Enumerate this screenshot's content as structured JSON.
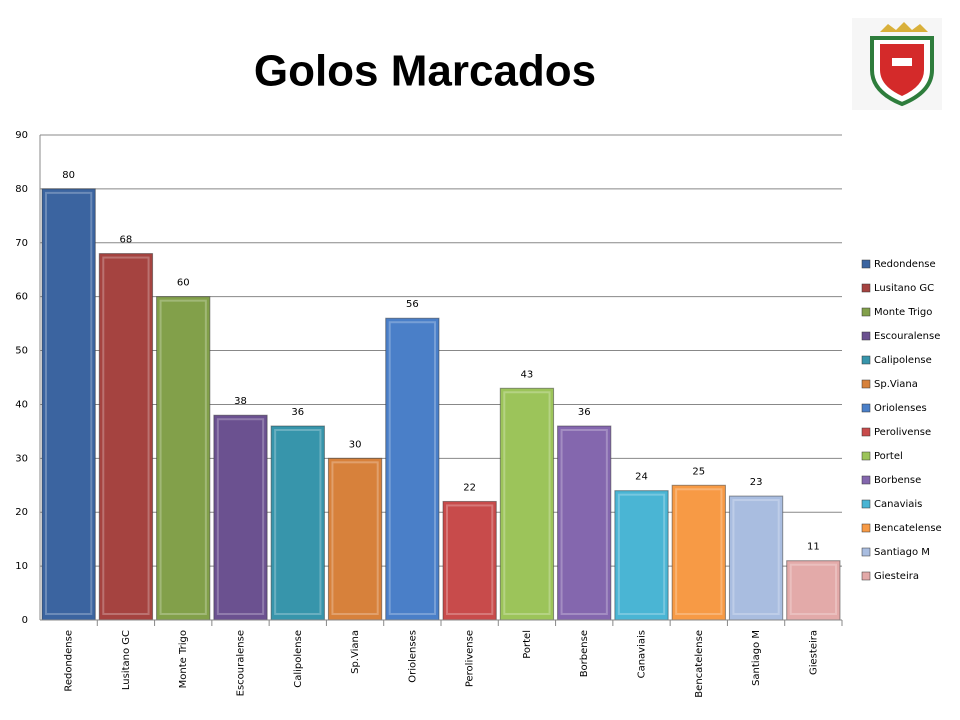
{
  "chart_data": {
    "type": "bar",
    "title": "Golos Marcados",
    "categories": [
      "Redondense",
      "Lusitano GC",
      "Monte Trigo",
      "Escouralense",
      "Calipolense",
      "Sp.Viana",
      "Oriolenses",
      "Perolivense",
      "Portel",
      "Borbense",
      "Canaviais",
      "Bencatelense",
      "Santiago M",
      "Giesteira"
    ],
    "values": [
      80,
      68,
      60,
      38,
      36,
      30,
      56,
      22,
      43,
      36,
      24,
      25,
      23,
      11
    ],
    "colors": [
      "#3b64a0",
      "#a54340",
      "#82a04a",
      "#6b5190",
      "#3795ab",
      "#d7813b",
      "#4a7fc8",
      "#c84b4b",
      "#9cc45a",
      "#8467ae",
      "#4ab5d4",
      "#f79a45",
      "#a9bde0",
      "#e3aaa9"
    ],
    "ylim": [
      0,
      90
    ],
    "yticks": [
      0,
      10,
      20,
      30,
      40,
      50,
      60,
      70,
      80,
      90
    ],
    "grid": true,
    "legend": "right"
  }
}
